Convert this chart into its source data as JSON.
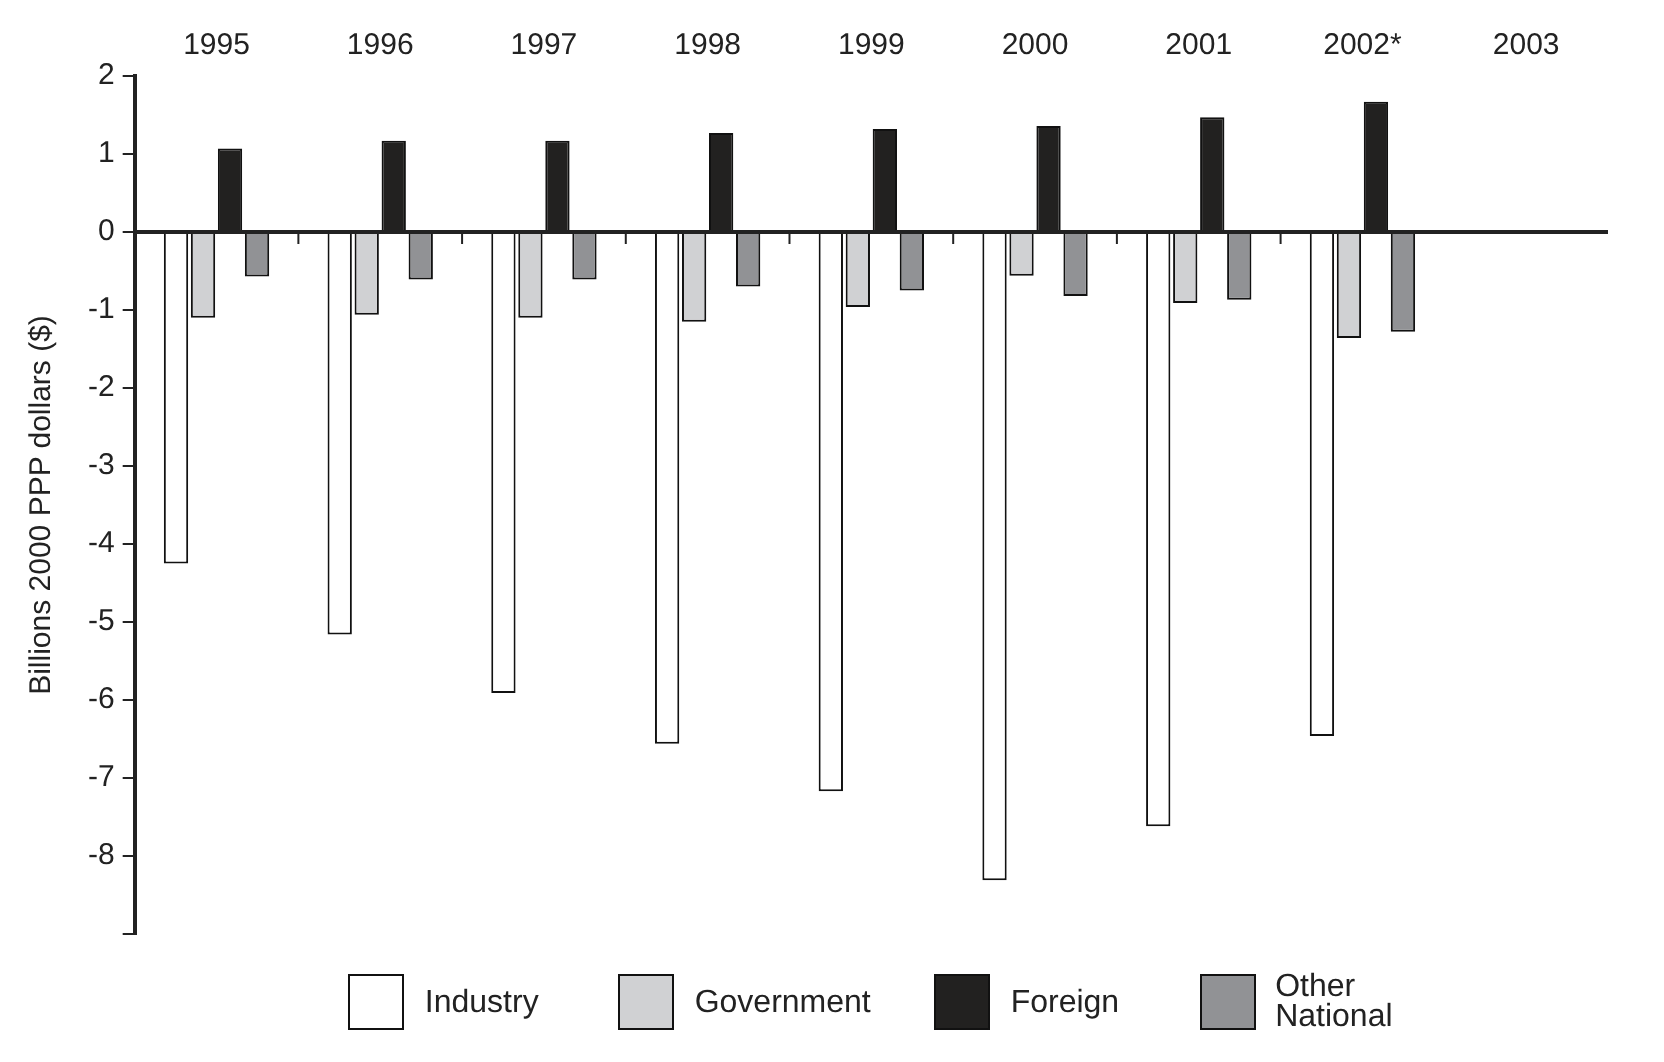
{
  "chart_data": {
    "type": "bar",
    "ylabel": "Billions 2000 PPP dollars ($)",
    "categories": [
      "1995",
      "1996",
      "1997",
      "1998",
      "1999",
      "2000",
      "2001",
      "2002*",
      "2003"
    ],
    "series": [
      {
        "name": "Industry",
        "color": "#ffffff",
        "values": [
          -4.25,
          -5.16,
          -5.91,
          -6.56,
          -7.17,
          -8.31,
          -7.62,
          -6.46,
          null
        ]
      },
      {
        "name": "Government",
        "color": "#d0d1d3",
        "values": [
          -1.1,
          -1.06,
          -1.1,
          -1.15,
          -0.96,
          -0.56,
          -0.91,
          -1.36,
          null
        ]
      },
      {
        "name": "Foreign",
        "color": "#222120",
        "values": [
          1.07,
          1.17,
          1.17,
          1.27,
          1.32,
          1.36,
          1.47,
          1.67,
          null
        ]
      },
      {
        "name": "Other National",
        "color": "#919295",
        "values": [
          -0.57,
          -0.61,
          -0.61,
          -0.7,
          -0.75,
          -0.82,
          -0.87,
          -1.28,
          null
        ]
      }
    ],
    "ylim": [
      -9,
      2
    ],
    "yticks": [
      2,
      1,
      0,
      -1,
      -2,
      -3,
      -4,
      -5,
      -6,
      -7,
      -8,
      {
        "value": -9,
        "label": null
      }
    ],
    "ref_lines": [
      {
        "axis": "y",
        "value": 0,
        "color": "#222222"
      }
    ],
    "grid": false,
    "legend": "bottom"
  }
}
